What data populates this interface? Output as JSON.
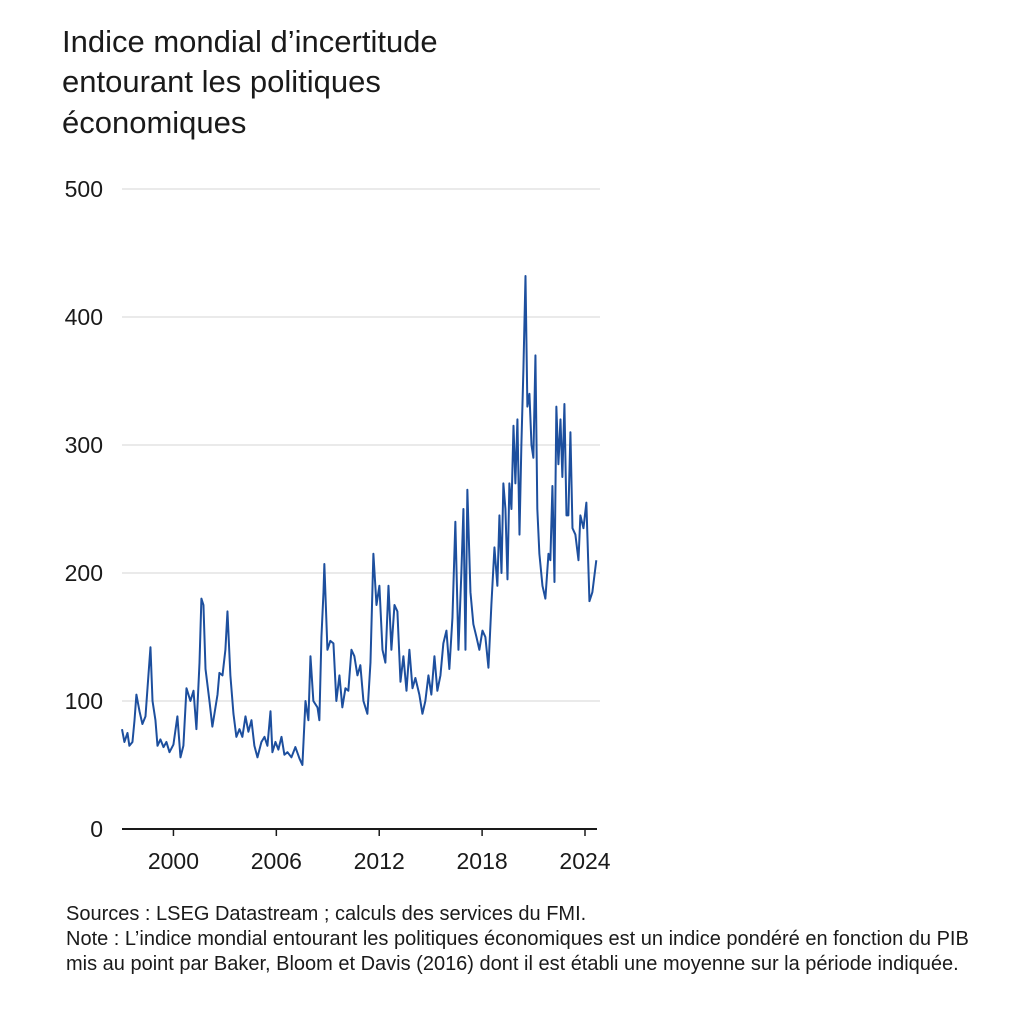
{
  "chart_data": {
    "type": "line",
    "title": [
      "Indice mondial d’incertitude",
      "entourant les politiques",
      "économiques"
    ],
    "x": [
      1997.0,
      1997.14,
      1997.32,
      1997.43,
      1997.61,
      1997.73,
      1997.84,
      1998.02,
      1998.19,
      1998.37,
      1998.54,
      1998.66,
      1998.78,
      1998.95,
      1999.07,
      1999.24,
      1999.42,
      1999.59,
      1999.77,
      2000.0,
      2000.23,
      2000.41,
      2000.58,
      2000.76,
      2000.99,
      2001.17,
      2001.34,
      2001.52,
      2001.63,
      2001.75,
      2001.87,
      2002.1,
      2002.27,
      2002.45,
      2002.57,
      2002.68,
      2002.86,
      2003.03,
      2003.15,
      2003.32,
      2003.5,
      2003.67,
      2003.85,
      2004.02,
      2004.2,
      2004.37,
      2004.55,
      2004.72,
      2004.9,
      2005.13,
      2005.31,
      2005.48,
      2005.66,
      2005.77,
      2005.95,
      2006.12,
      2006.3,
      2006.47,
      2006.65,
      2006.88,
      2007.11,
      2007.35,
      2007.52,
      2007.7,
      2007.87,
      2007.99,
      2008.16,
      2008.4,
      2008.51,
      2008.63,
      2008.75,
      2008.8,
      2008.98,
      2009.15,
      2009.33,
      2009.5,
      2009.68,
      2009.85,
      2010.03,
      2010.2,
      2010.38,
      2010.55,
      2010.73,
      2010.9,
      2011.08,
      2011.31,
      2011.49,
      2011.66,
      2011.84,
      2012.01,
      2012.19,
      2012.36,
      2012.54,
      2012.71,
      2012.89,
      2013.06,
      2013.24,
      2013.41,
      2013.59,
      2013.76,
      2013.94,
      2014.11,
      2014.34,
      2014.52,
      2014.69,
      2014.87,
      2015.04,
      2015.22,
      2015.39,
      2015.57,
      2015.74,
      2015.92,
      2016.09,
      2016.27,
      2016.44,
      2016.62,
      2016.79,
      2016.91,
      2017.03,
      2017.14,
      2017.32,
      2017.49,
      2017.67,
      2017.84,
      2018.02,
      2018.19,
      2018.37,
      2018.54,
      2018.72,
      2018.89,
      2019.01,
      2019.13,
      2019.24,
      2019.36,
      2019.48,
      2019.59,
      2019.71,
      2019.83,
      2019.94,
      2020.06,
      2020.18,
      2020.29,
      2020.41,
      2020.53,
      2020.64,
      2020.76,
      2020.88,
      2020.99,
      2021.11,
      2021.22,
      2021.34,
      2021.52,
      2021.69,
      2021.87,
      2021.98,
      2022.1,
      2022.22,
      2022.33,
      2022.45,
      2022.57,
      2022.68,
      2022.8,
      2022.92,
      2023.03,
      2023.15,
      2023.27,
      2023.44,
      2023.62,
      2023.73,
      2023.91,
      2024.08,
      2024.26,
      2024.43,
      2024.66
    ],
    "series": [
      {
        "name": "Indice mondial d’incertitude entourant les politiques économiques",
        "color": "#1d4f9e",
        "values": [
          78,
          68,
          75,
          65,
          68,
          85,
          105,
          92,
          82,
          88,
          120,
          142,
          100,
          85,
          65,
          70,
          64,
          68,
          60,
          66,
          88,
          56,
          65,
          110,
          100,
          108,
          78,
          130,
          180,
          175,
          125,
          100,
          80,
          95,
          105,
          122,
          120,
          140,
          170,
          120,
          90,
          72,
          78,
          72,
          88,
          76,
          85,
          65,
          56,
          68,
          72,
          65,
          92,
          60,
          68,
          62,
          72,
          58,
          60,
          56,
          64,
          55,
          50,
          100,
          85,
          135,
          100,
          95,
          85,
          150,
          185,
          207,
          140,
          147,
          145,
          100,
          120,
          95,
          110,
          108,
          140,
          135,
          120,
          128,
          100,
          90,
          130,
          215,
          175,
          190,
          140,
          130,
          190,
          140,
          175,
          170,
          115,
          135,
          108,
          140,
          110,
          118,
          105,
          90,
          100,
          120,
          105,
          135,
          108,
          120,
          145,
          155,
          125,
          165,
          240,
          140,
          200,
          250,
          140,
          265,
          185,
          160,
          150,
          140,
          155,
          150,
          126,
          175,
          220,
          190,
          245,
          200,
          270,
          250,
          195,
          270,
          250,
          315,
          270,
          320,
          230,
          300,
          360,
          432,
          330,
          340,
          300,
          290,
          370,
          250,
          215,
          190,
          180,
          215,
          210,
          268,
          193,
          330,
          285,
          320,
          275,
          332,
          245,
          245,
          310,
          235,
          230,
          210,
          245,
          235,
          255,
          178,
          185,
          210
        ]
      }
    ],
    "xlim": [
      1997,
      2024.7
    ],
    "xticks": [
      2000,
      2006,
      2012,
      2018,
      2024
    ],
    "ylim": [
      0,
      500
    ],
    "yticks": [
      0,
      100,
      200,
      300,
      400,
      500
    ],
    "grid": true,
    "notes": [
      "Sources : LSEG Datastream ; calculs des services du FMI.",
      "Note : L’indice mondial entourant les politiques économiques est un indice pondéré en fonction du PIB mis au point par Baker, Bloom et Davis (2016) dont il est établi une moyenne sur la période indiquée."
    ]
  }
}
